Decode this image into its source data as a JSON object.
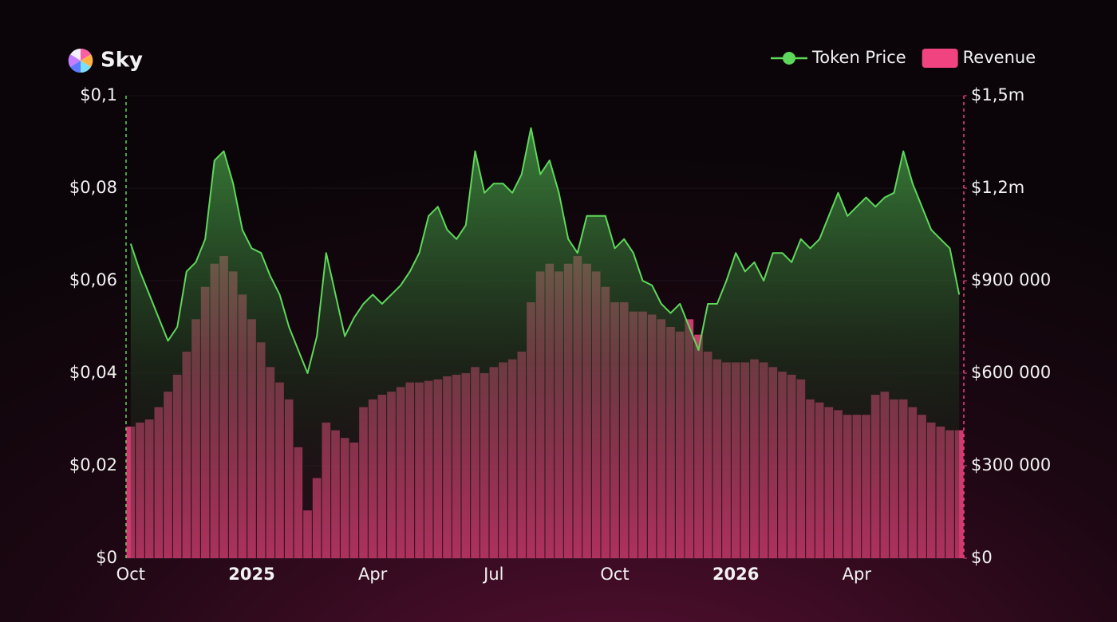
{
  "chart_data": {
    "type": "bar-line",
    "title": "Sky",
    "categories": [
      "Oct",
      null,
      null,
      null,
      null,
      null,
      null,
      null,
      null,
      null,
      null,
      null,
      null,
      "2025",
      null,
      null,
      null,
      null,
      null,
      null,
      null,
      null,
      null,
      null,
      null,
      null,
      "Apr",
      null,
      null,
      null,
      null,
      null,
      null,
      null,
      null,
      null,
      null,
      null,
      null,
      "Jul",
      null,
      null,
      null,
      null,
      null,
      null,
      null,
      null,
      null,
      null,
      null,
      null,
      "Oct",
      null,
      null,
      null,
      null,
      null,
      null,
      null,
      null,
      null,
      null,
      null,
      null,
      "2026",
      null,
      null,
      null,
      null,
      null,
      null,
      null,
      null,
      null,
      null,
      null,
      null,
      "Apr",
      null,
      null,
      null,
      null,
      null,
      null,
      null,
      null,
      null,
      null,
      null
    ],
    "series": [
      {
        "name": "Token Price",
        "color": "#5ed85a",
        "kind": "line",
        "values": [
          0.068,
          0.062,
          0.057,
          0.052,
          0.047,
          0.05,
          0.062,
          0.064,
          0.069,
          0.086,
          0.088,
          0.081,
          0.071,
          0.067,
          0.066,
          0.061,
          0.057,
          0.05,
          0.045,
          0.04,
          0.048,
          0.066,
          0.057,
          0.048,
          0.052,
          0.055,
          0.057,
          0.055,
          0.057,
          0.059,
          0.062,
          0.066,
          0.074,
          0.076,
          0.071,
          0.069,
          0.072,
          0.088,
          0.079,
          0.081,
          0.081,
          0.079,
          0.083,
          0.093,
          0.083,
          0.086,
          0.079,
          0.069,
          0.066,
          0.074,
          0.074,
          0.074,
          0.067,
          0.069,
          0.066,
          0.06,
          0.059,
          0.055,
          0.053,
          0.055,
          0.05,
          0.045,
          0.055,
          0.055,
          0.06,
          0.066,
          0.062,
          0.064,
          0.06,
          0.066,
          0.066,
          0.064,
          0.069,
          0.067,
          0.069,
          0.074,
          0.079,
          0.074,
          0.076,
          0.078,
          0.076,
          0.078,
          0.079,
          0.088,
          0.081,
          0.076,
          0.071,
          0.069,
          0.067,
          0.057
        ]
      },
      {
        "name": "Revenue",
        "color": "#f0437f",
        "kind": "bar",
        "axis": "y2",
        "values": [
          427000,
          440000,
          450000,
          490000,
          540000,
          595000,
          670000,
          775000,
          880000,
          955000,
          980000,
          930000,
          855000,
          775000,
          700000,
          620000,
          570000,
          515000,
          360000,
          155000,
          260000,
          440000,
          415000,
          390000,
          375000,
          490000,
          515000,
          530000,
          540000,
          555000,
          570000,
          570000,
          575000,
          580000,
          590000,
          595000,
          600000,
          620000,
          600000,
          620000,
          635000,
          645000,
          670000,
          830000,
          930000,
          955000,
          930000,
          955000,
          980000,
          955000,
          930000,
          880000,
          830000,
          830000,
          800000,
          800000,
          790000,
          775000,
          750000,
          735000,
          775000,
          725000,
          670000,
          645000,
          635000,
          635000,
          635000,
          645000,
          635000,
          620000,
          605000,
          595000,
          580000,
          515000,
          505000,
          490000,
          480000,
          465000,
          465000,
          465000,
          530000,
          540000,
          515000,
          515000,
          490000,
          465000,
          440000,
          427000,
          415000,
          415000
        ]
      }
    ],
    "ylim": [
      0,
      0.1
    ],
    "yticks": [
      {
        "value": 0,
        "label": "$0"
      },
      {
        "value": 0.02,
        "label": "$0,02"
      },
      {
        "value": 0.04,
        "label": "$0,04"
      },
      {
        "value": 0.06,
        "label": "$0,06"
      },
      {
        "value": 0.08,
        "label": "$0,08"
      },
      {
        "value": 0.1,
        "label": "$0,1"
      }
    ],
    "y2lim": [
      0,
      1500000
    ],
    "y2ticks": [
      {
        "value": 0,
        "label": "$0"
      },
      {
        "value": 300000,
        "label": "$300 000"
      },
      {
        "value": 600000,
        "label": "$600 000"
      },
      {
        "value": 900000,
        "label": "$900 000"
      },
      {
        "value": 1200000,
        "label": "$1,2m"
      },
      {
        "value": 1500000,
        "label": "$1,5m"
      }
    ],
    "grid": true,
    "legend": "top-right"
  }
}
